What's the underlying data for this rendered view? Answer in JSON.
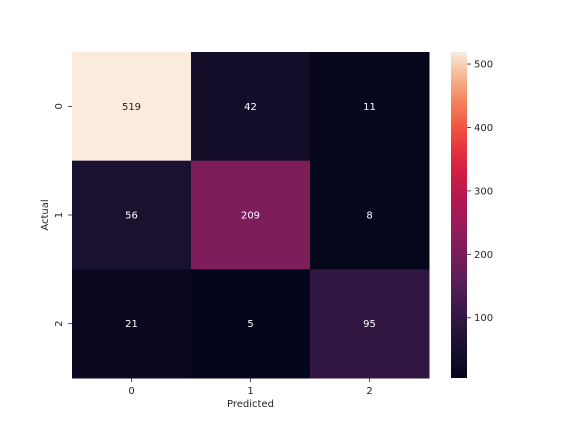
{
  "chart_data": {
    "type": "heatmap",
    "title": "",
    "xlabel": "Predicted",
    "ylabel": "Actual",
    "x_categories": [
      "0",
      "1",
      "2"
    ],
    "y_categories": [
      "0",
      "1",
      "2"
    ],
    "values": [
      [
        519,
        42,
        11
      ],
      [
        56,
        209,
        8
      ],
      [
        21,
        5,
        95
      ]
    ],
    "colormap": "rocket",
    "colorbar": {
      "range": [
        5,
        519
      ],
      "ticks": [
        100,
        200,
        300,
        400,
        500
      ],
      "tick_labels": [
        "100",
        "200",
        "300",
        "400",
        "500"
      ]
    },
    "annotations": true,
    "grid": false
  }
}
